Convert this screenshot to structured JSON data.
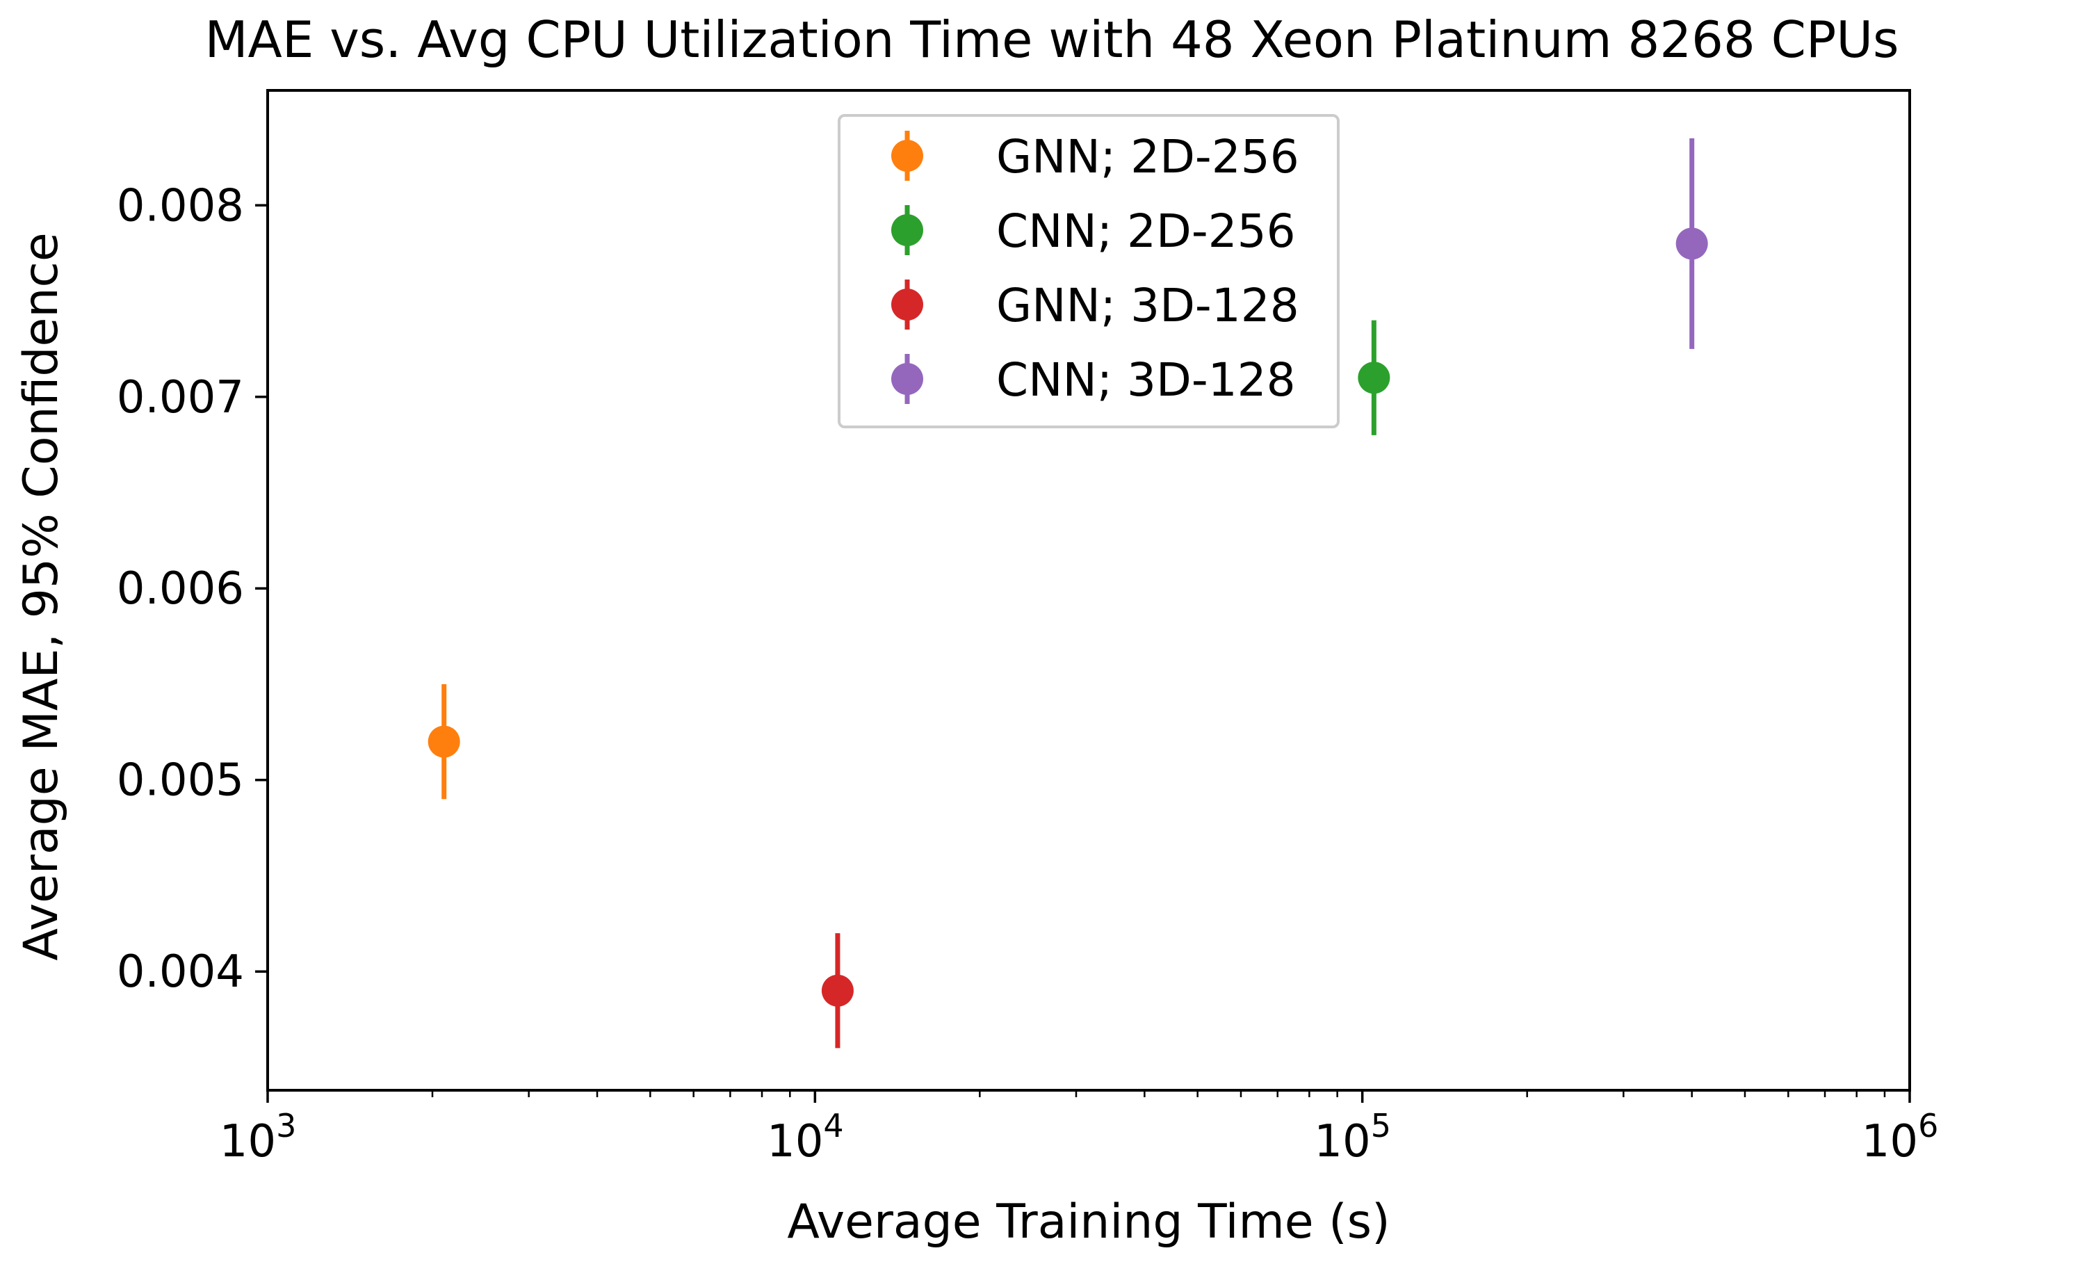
{
  "chart_data": {
    "type": "scatter",
    "title": "MAE vs. Avg CPU Utilization Time with 48 Xeon Platinum 8268 CPUs",
    "xlabel": "Average Training Time (s)",
    "ylabel": "Average MAE, 95% Confidence",
    "xscale": "log",
    "xlim": [
      1000,
      1000000
    ],
    "ylim": [
      0.00338,
      0.0086
    ],
    "x_ticks": [
      {
        "value": 1000,
        "base": "10",
        "exp": "3"
      },
      {
        "value": 10000,
        "base": "10",
        "exp": "4"
      },
      {
        "value": 100000,
        "base": "10",
        "exp": "5"
      },
      {
        "value": 1000000,
        "base": "10",
        "exp": "6"
      }
    ],
    "y_ticks": [
      {
        "value": 0.004,
        "label": "0.004"
      },
      {
        "value": 0.005,
        "label": "0.005"
      },
      {
        "value": 0.006,
        "label": "0.006"
      },
      {
        "value": 0.007,
        "label": "0.007"
      },
      {
        "value": 0.008,
        "label": "0.008"
      }
    ],
    "legend_position": "top-center",
    "grid": false,
    "series": [
      {
        "name": "GNN; 2D-256",
        "color": "#ff7f0e",
        "x": 2100,
        "y": 0.0052,
        "err_low": 0.0049,
        "err_high": 0.0055
      },
      {
        "name": "CNN; 2D-256",
        "color": "#2ca02c",
        "x": 105000,
        "y": 0.0071,
        "err_low": 0.0068,
        "err_high": 0.0074
      },
      {
        "name": "GNN; 3D-128",
        "color": "#d62728",
        "x": 11000,
        "y": 0.0039,
        "err_low": 0.0036,
        "err_high": 0.0042
      },
      {
        "name": "CNN; 3D-128",
        "color": "#9467bd",
        "x": 400000,
        "y": 0.0078,
        "err_low": 0.00725,
        "err_high": 0.00835
      }
    ]
  }
}
